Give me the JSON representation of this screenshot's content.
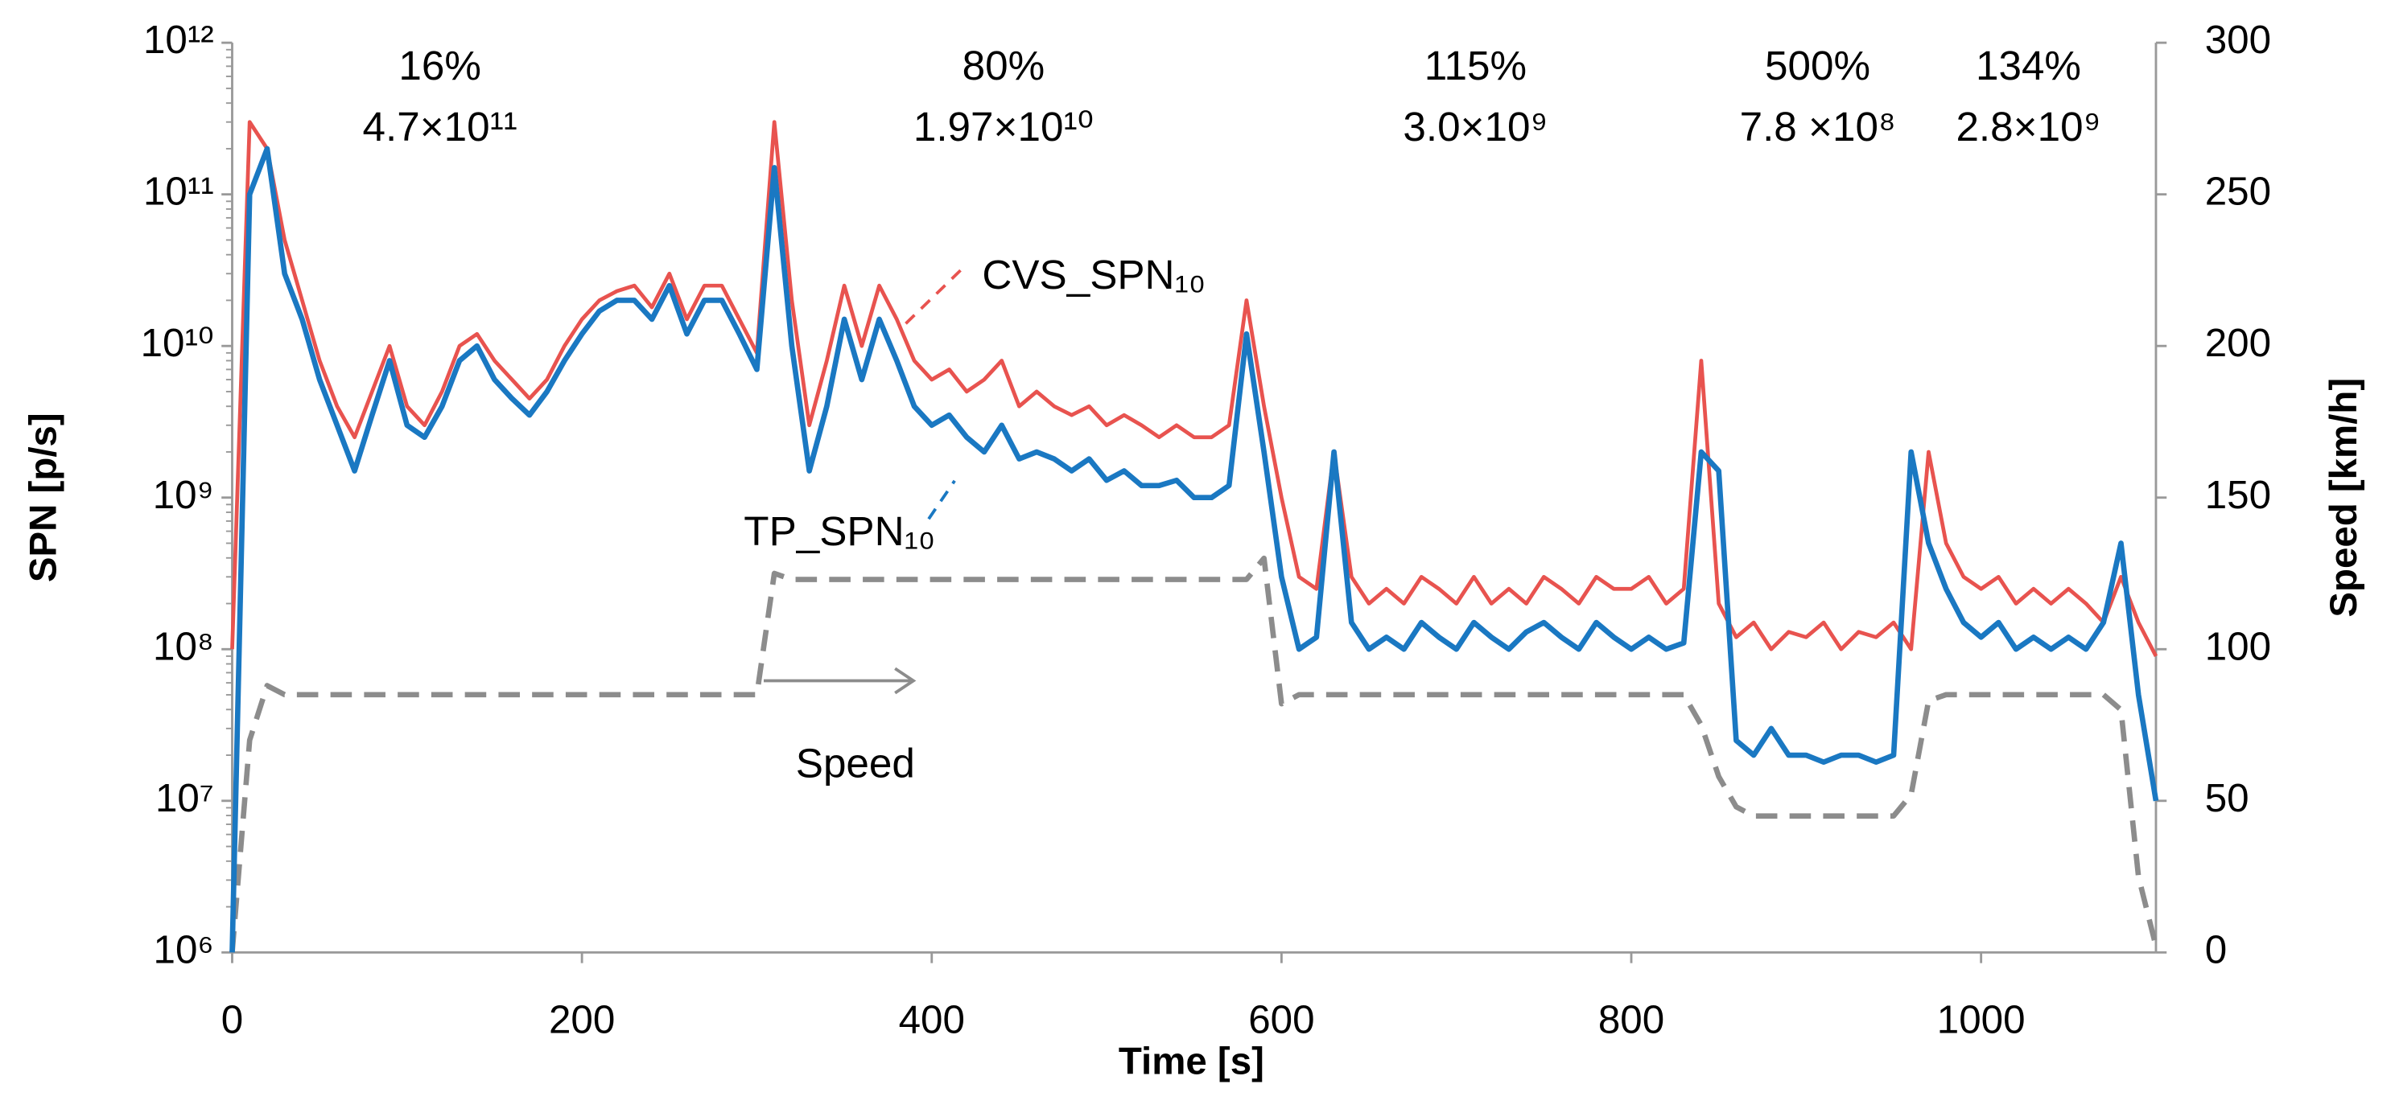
{
  "chart_data": {
    "type": "line",
    "xlabel": "Time [s]",
    "ylabel": "SPN [p/s]",
    "y2label": "Speed [km/h]",
    "xlim": [
      0,
      1100
    ],
    "xticks": [
      0,
      200,
      400,
      600,
      800,
      1000
    ],
    "ylim": [
      1000000,
      1000000000000
    ],
    "yscale": "log",
    "yticks": [
      {
        "value": 1000000,
        "label": "10⁶"
      },
      {
        "value": 10000000,
        "label": "10⁷"
      },
      {
        "value": 100000000,
        "label": "10⁸"
      },
      {
        "value": 1000000000,
        "label": "10⁹"
      },
      {
        "value": 10000000000,
        "label": "10¹⁰"
      },
      {
        "value": 100000000000,
        "label": "10¹¹"
      },
      {
        "value": 1000000000000,
        "label": "10¹²"
      }
    ],
    "y2lim": [
      0,
      300
    ],
    "y2ticks": [
      0,
      50,
      100,
      150,
      200,
      250,
      300
    ],
    "annotations": [
      {
        "percent": "16%",
        "value": "4.7×10¹¹"
      },
      {
        "percent": "80%",
        "value": "1.97×10¹⁰"
      },
      {
        "percent": "115%",
        "value": "3.0×10⁹"
      },
      {
        "percent": "500%",
        "value": "7.8 ×10⁸"
      },
      {
        "percent": "134%",
        "value": "2.8×10⁹"
      }
    ],
    "x": [
      0,
      10,
      20,
      30,
      40,
      50,
      60,
      70,
      80,
      90,
      100,
      110,
      120,
      130,
      140,
      150,
      160,
      170,
      180,
      190,
      200,
      210,
      220,
      230,
      240,
      250,
      260,
      270,
      280,
      290,
      300,
      310,
      320,
      330,
      340,
      350,
      360,
      370,
      380,
      390,
      400,
      410,
      420,
      430,
      440,
      450,
      460,
      470,
      480,
      490,
      500,
      510,
      520,
      530,
      540,
      550,
      560,
      570,
      580,
      590,
      600,
      610,
      620,
      630,
      640,
      650,
      660,
      670,
      680,
      690,
      700,
      710,
      720,
      730,
      740,
      750,
      760,
      770,
      780,
      790,
      800,
      810,
      820,
      830,
      840,
      850,
      860,
      870,
      880,
      890,
      900,
      910,
      920,
      930,
      940,
      950,
      960,
      970,
      980,
      990,
      1000,
      1010,
      1020,
      1030,
      1040,
      1050,
      1060,
      1070,
      1080,
      1090,
      1100
    ],
    "series": [
      {
        "name": "CVS_SPN₁₀",
        "color": "#e8534f",
        "width": 2.5,
        "values": [
          100000000.0,
          300000000000.0,
          200000000000.0,
          50000000000.0,
          20000000000.0,
          8000000000.0,
          4000000000.0,
          2500000000.0,
          5000000000.0,
          10000000000.0,
          4000000000.0,
          3000000000.0,
          5000000000.0,
          10000000000.0,
          12000000000.0,
          8000000000.0,
          6000000000.0,
          4500000000.0,
          6000000000.0,
          10000000000.0,
          15000000000.0,
          20000000000.0,
          23000000000.0,
          25000000000.0,
          18000000000.0,
          30000000000.0,
          15000000000.0,
          25000000000.0,
          25000000000.0,
          15000000000.0,
          9000000000.0,
          300000000000.0,
          20000000000.0,
          3000000000.0,
          8000000000.0,
          25000000000.0,
          10000000000.0,
          25000000000.0,
          15000000000.0,
          8000000000.0,
          6000000000.0,
          7000000000.0,
          5000000000.0,
          6000000000.0,
          8000000000.0,
          4000000000.0,
          5000000000.0,
          4000000000.0,
          3500000000.0,
          4000000000.0,
          3000000000.0,
          3500000000.0,
          3000000000.0,
          2500000000.0,
          3000000000.0,
          2500000000.0,
          2500000000.0,
          3000000000.0,
          20000000000.0,
          4000000000.0,
          1000000000.0,
          300000000.0,
          250000000.0,
          2000000000.0,
          300000000.0,
          200000000.0,
          250000000.0,
          200000000.0,
          300000000.0,
          250000000.0,
          200000000.0,
          300000000.0,
          200000000.0,
          250000000.0,
          200000000.0,
          300000000.0,
          250000000.0,
          200000000.0,
          300000000.0,
          250000000.0,
          250000000.0,
          300000000.0,
          200000000.0,
          250000000.0,
          8000000000.0,
          200000000.0,
          120000000.0,
          150000000.0,
          100000000.0,
          130000000.0,
          120000000.0,
          150000000.0,
          100000000.0,
          130000000.0,
          120000000.0,
          150000000.0,
          100000000.0,
          2000000000.0,
          500000000.0,
          300000000.0,
          250000000.0,
          300000000.0,
          200000000.0,
          250000000.0,
          200000000.0,
          250000000.0,
          200000000.0,
          150000000.0,
          300000000.0,
          150000000.0,
          90000000.0
        ]
      },
      {
        "name": "TP_SPN₁₀",
        "color": "#1a78c2",
        "width": 3.5,
        "values": [
          1000000.0,
          100000000000.0,
          200000000000.0,
          30000000000.0,
          15000000000.0,
          6000000000.0,
          3000000000.0,
          1500000000.0,
          3500000000.0,
          8000000000.0,
          3000000000.0,
          2500000000.0,
          4000000000.0,
          8000000000.0,
          10000000000.0,
          6000000000.0,
          4500000000.0,
          3500000000.0,
          5000000000.0,
          8000000000.0,
          12000000000.0,
          17000000000.0,
          20000000000.0,
          20000000000.0,
          15000000000.0,
          25000000000.0,
          12000000000.0,
          20000000000.0,
          20000000000.0,
          12000000000.0,
          7000000000.0,
          150000000000.0,
          10000000000.0,
          1500000000.0,
          4000000000.0,
          15000000000.0,
          6000000000.0,
          15000000000.0,
          8000000000.0,
          4000000000.0,
          3000000000.0,
          3500000000.0,
          2500000000.0,
          2000000000.0,
          3000000000.0,
          1800000000.0,
          2000000000.0,
          1800000000.0,
          1500000000.0,
          1800000000.0,
          1300000000.0,
          1500000000.0,
          1200000000.0,
          1200000000.0,
          1300000000.0,
          1000000000.0,
          1000000000.0,
          1200000000.0,
          12000000000.0,
          2000000000.0,
          300000000.0,
          100000000.0,
          120000000.0,
          2000000000.0,
          150000000.0,
          100000000.0,
          120000000.0,
          100000000.0,
          150000000.0,
          120000000.0,
          100000000.0,
          150000000.0,
          120000000.0,
          100000000.0,
          130000000.0,
          150000000.0,
          120000000.0,
          100000000.0,
          150000000.0,
          120000000.0,
          100000000.0,
          120000000.0,
          100000000.0,
          110000000.0,
          2000000000.0,
          1500000000.0,
          25000000.0,
          20000000.0,
          30000000.0,
          20000000.0,
          20000000.0,
          18000000.0,
          20000000.0,
          20000000.0,
          18000000.0,
          20000000.0,
          2000000000.0,
          500000000.0,
          250000000.0,
          150000000.0,
          120000000.0,
          150000000.0,
          100000000.0,
          120000000.0,
          100000000.0,
          120000000.0,
          100000000.0,
          150000000.0,
          500000000.0,
          50000000.0,
          10000000.0
        ]
      },
      {
        "name": "Speed",
        "color": "#8c8c8c",
        "width": 3.5,
        "style": "dashed",
        "axis": "y2",
        "values": [
          0,
          70,
          88,
          85,
          85,
          85,
          85,
          85,
          85,
          85,
          85,
          85,
          85,
          85,
          85,
          85,
          85,
          85,
          85,
          85,
          85,
          85,
          85,
          85,
          85,
          85,
          85,
          85,
          85,
          85,
          85,
          125,
          123,
          123,
          123,
          123,
          123,
          123,
          123,
          123,
          123,
          123,
          123,
          123,
          123,
          123,
          123,
          123,
          123,
          123,
          123,
          123,
          123,
          123,
          123,
          123,
          123,
          123,
          123,
          130,
          82,
          85,
          85,
          85,
          85,
          85,
          85,
          85,
          85,
          85,
          85,
          85,
          85,
          85,
          85,
          85,
          85,
          85,
          85,
          85,
          85,
          85,
          85,
          85,
          75,
          58,
          48,
          45,
          45,
          45,
          45,
          45,
          45,
          45,
          45,
          45,
          52,
          83,
          85,
          85,
          85,
          85,
          85,
          85,
          85,
          85,
          85,
          85,
          80,
          25,
          2
        ]
      }
    ]
  }
}
